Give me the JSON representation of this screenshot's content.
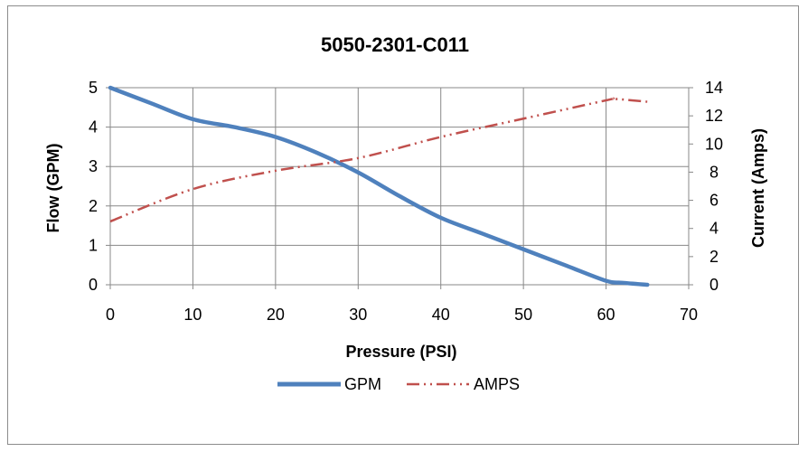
{
  "chart_data": {
    "type": "line",
    "title": "5050-2301-C011",
    "xlabel": "Pressure (PSI)",
    "ylabel": "Flow (GPM)",
    "y2label": "Current (Amps)",
    "xlim": [
      0,
      70
    ],
    "ylim": [
      0,
      5
    ],
    "y2lim": [
      0,
      14
    ],
    "xticks": [
      "0",
      "10",
      "20",
      "30",
      "40",
      "50",
      "60",
      "70"
    ],
    "yticks": [
      "0",
      "1",
      "2",
      "3",
      "4",
      "5"
    ],
    "y2ticks": [
      "0",
      "2",
      "4",
      "6",
      "8",
      "10",
      "12",
      "14"
    ],
    "grid": true,
    "legend_position": "bottom",
    "series": [
      {
        "name": "GPM",
        "axis": "left",
        "color": "#4F81BD",
        "style": "solid",
        "x": [
          0,
          5,
          10,
          15,
          20,
          25,
          30,
          35,
          40,
          45,
          50,
          55,
          60,
          62,
          65
        ],
        "y": [
          5.0,
          4.6,
          4.2,
          4.0,
          3.75,
          3.35,
          2.85,
          2.25,
          1.7,
          1.3,
          0.9,
          0.5,
          0.1,
          0.05,
          0.0
        ]
      },
      {
        "name": "AMPS",
        "axis": "right",
        "color": "#C0504D",
        "style": "dash-dot-dot",
        "x": [
          0,
          10,
          20,
          30,
          40,
          50,
          60,
          61,
          65
        ],
        "y": [
          4.5,
          6.8,
          8.1,
          9.0,
          10.5,
          11.8,
          13.1,
          13.2,
          13.0
        ]
      }
    ]
  }
}
